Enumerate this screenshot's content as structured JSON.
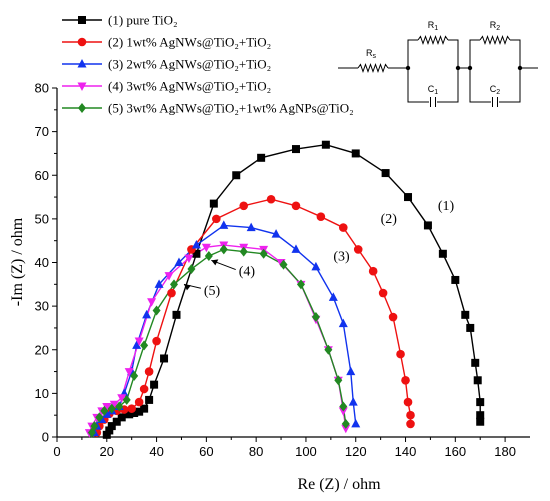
{
  "chart_data": {
    "type": "scatter",
    "xlabel": "Re (Z) / ohm",
    "ylabel": "-Im (Z) / ohm",
    "xlim": [
      0,
      190
    ],
    "ylim": [
      0,
      80
    ],
    "xticks": [
      0,
      20,
      40,
      60,
      80,
      100,
      120,
      140,
      160,
      180
    ],
    "yticks": [
      0,
      10,
      20,
      30,
      40,
      50,
      60,
      70,
      80
    ],
    "legend_position": "top-left",
    "series": [
      {
        "name": "(1) pure TiO₂",
        "label": "(1)",
        "color": "#000000",
        "marker": "square",
        "x": [
          20,
          21,
          22,
          24,
          26,
          29,
          31,
          33,
          35,
          37,
          39,
          43,
          48,
          56,
          63,
          72,
          82,
          96,
          108,
          120,
          132,
          141,
          149,
          155,
          160,
          164,
          166,
          168,
          169,
          170,
          170,
          170
        ],
        "y": [
          0.5,
          1.5,
          2.5,
          3.5,
          4.5,
          5.2,
          5.5,
          5.8,
          6.5,
          8.5,
          12,
          18,
          28,
          42,
          53.5,
          60,
          64,
          66,
          67,
          65,
          60.5,
          55,
          48.5,
          42,
          36,
          28,
          25,
          17,
          13,
          8,
          5,
          3.5
        ]
      },
      {
        "name": "(2) 1wt% AgNWs@TiO₂+TiO₂",
        "label": "(2)",
        "color": "#ee1111",
        "marker": "circle",
        "x": [
          16,
          17,
          19,
          21,
          24,
          27,
          30,
          33,
          35,
          37,
          40,
          46,
          54,
          64,
          75,
          86,
          96,
          106,
          115,
          121,
          127,
          131,
          135,
          138,
          140,
          141,
          142,
          142
        ],
        "y": [
          1,
          2.5,
          4,
          5.3,
          6,
          6.3,
          6.5,
          8,
          11,
          15,
          22,
          33,
          43,
          50,
          53,
          54.5,
          53,
          50.5,
          48,
          43,
          38,
          33,
          27.5,
          19,
          13,
          8,
          5,
          3
        ]
      },
      {
        "name": "(3) 2wt% AgNWs@TiO₂+TiO₂",
        "label": "(3)",
        "color": "#1133ee",
        "marker": "triangle-up",
        "x": [
          15,
          16,
          18,
          20,
          22,
          25,
          27,
          30,
          32,
          36,
          41,
          49,
          56,
          67,
          78,
          88,
          96,
          104,
          111,
          115,
          118,
          119,
          120
        ],
        "y": [
          1,
          2.5,
          4,
          5.2,
          6,
          7,
          10,
          15,
          21,
          28,
          35,
          40,
          44,
          48.5,
          48,
          46.5,
          43,
          39,
          32,
          26,
          15,
          8,
          3
        ]
      },
      {
        "name": "(4) 3wt% AgNWs@TiO₂+TiO₂",
        "label": "(4)",
        "color": "#ee22ee",
        "marker": "triangle-down",
        "x": [
          13,
          14,
          16,
          18,
          20,
          23,
          26,
          29,
          33,
          38,
          45,
          53,
          60,
          67,
          75,
          83,
          90,
          98,
          104,
          109,
          113,
          115,
          116
        ],
        "y": [
          1,
          2.5,
          4.5,
          6,
          7,
          7.5,
          9,
          15,
          22,
          31,
          37,
          41,
          43.5,
          44,
          43.5,
          43,
          40,
          35,
          27,
          20,
          13,
          6,
          2
        ]
      },
      {
        "name": "(5) 3wt% AgNWs@TiO₂+1wt% AgNPs@TiO₂",
        "label": "(5)",
        "color": "#228822",
        "marker": "diamond",
        "x": [
          14,
          15,
          17,
          19,
          22,
          25,
          28,
          31,
          35,
          40,
          47,
          54,
          61,
          67,
          75,
          83,
          91,
          98,
          104,
          109,
          113,
          115,
          116
        ],
        "y": [
          1,
          2.5,
          4.5,
          6,
          6.5,
          7,
          8.5,
          14,
          21,
          29,
          35,
          38.5,
          41.5,
          43,
          42.5,
          42,
          39.5,
          35,
          27.5,
          20,
          13,
          7,
          3
        ]
      }
    ],
    "annotations": [
      {
        "text": "(1)",
        "x": 153,
        "y": 52
      },
      {
        "text": "(2)",
        "x": 130,
        "y": 49
      },
      {
        "text": "(3)",
        "x": 111,
        "y": 40.5
      },
      {
        "text": "(4)",
        "x": 73,
        "y": 37
      },
      {
        "text": "(5)",
        "x": 59,
        "y": 32.5
      }
    ],
    "circuit_labels": [
      "Rs",
      "R1",
      "C1",
      "R2",
      "C2"
    ]
  }
}
